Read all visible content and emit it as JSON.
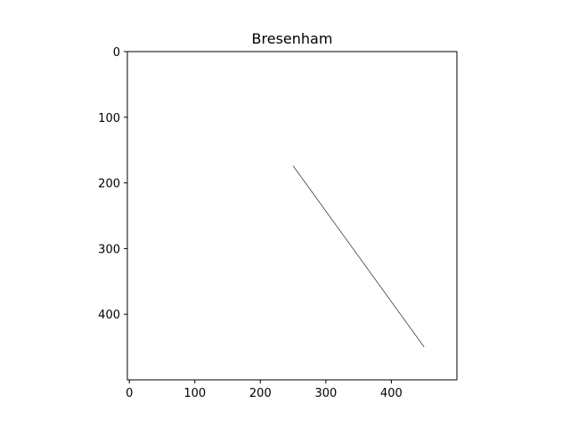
{
  "chart_data": {
    "type": "line",
    "title": "Bresenham",
    "xlabel": "",
    "ylabel": "",
    "xlim": [
      -3,
      500
    ],
    "ylim": [
      500,
      0
    ],
    "y_inverted": true,
    "aspect": "equal",
    "grid": false,
    "x_ticks": [
      0,
      100,
      200,
      300,
      400
    ],
    "y_ticks": [
      0,
      100,
      200,
      300,
      400
    ],
    "series": [
      {
        "x": [
          250,
          450
        ],
        "y": [
          174,
          450
        ],
        "color": "#000000"
      }
    ]
  }
}
